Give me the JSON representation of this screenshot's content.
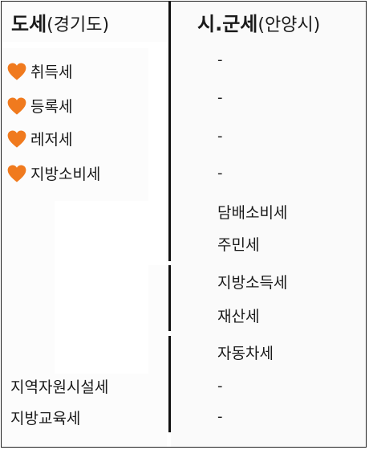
{
  "left_header": {
    "bold": "도세",
    "paren": "(경기도)"
  },
  "right_header": {
    "bold": "시.군세",
    "paren": "(안양시)"
  },
  "left_items": [
    {
      "label": "취득세",
      "icon": "heart-icon"
    },
    {
      "label": "등록세",
      "icon": "heart-icon"
    },
    {
      "label": "레저세",
      "icon": "heart-icon"
    },
    {
      "label": "지방소비세",
      "icon": "heart-icon"
    }
  ],
  "left_bottom_items": [
    "지역자원시설세",
    "지방교육세"
  ],
  "right_dashes": [
    "-",
    "-",
    "-",
    "-"
  ],
  "right_items": [
    "담배소비세",
    "주민세",
    "지방소득세",
    "재산세",
    "자동차세"
  ],
  "right_bottom_dashes": [
    "-",
    "-"
  ],
  "colors": {
    "heart": "#f07a1e",
    "divider": "#111111"
  }
}
